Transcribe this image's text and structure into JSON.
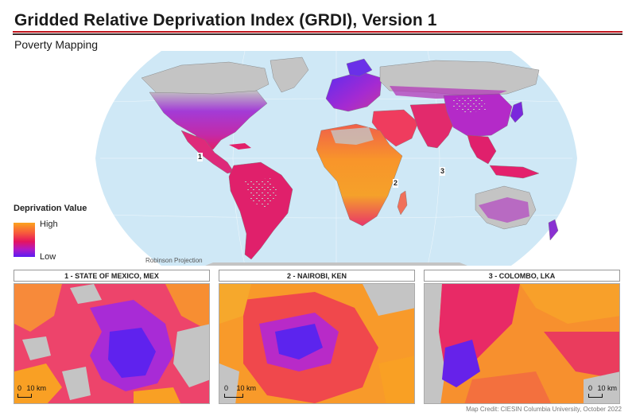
{
  "header": {
    "title": "Gridded Relative Deprivation Index (GRDI), Version 1",
    "subtitle": "Poverty Mapping"
  },
  "map": {
    "projection": "Robinson Projection",
    "callouts": [
      "1",
      "2",
      "3"
    ]
  },
  "legend": {
    "title": "Deprivation Value",
    "high": "High",
    "low": "Low",
    "colors": [
      "#fca41e",
      "#f75a3c",
      "#e5145f",
      "#b019c6",
      "#5a1df2"
    ]
  },
  "insets": [
    {
      "label": "1  -  STATE OF MEXICO, MEX",
      "scale_zero": "0",
      "scale_text": "10 km"
    },
    {
      "label": "2  - NAIROBI, KEN",
      "scale_zero": "0",
      "scale_text": "10 km"
    },
    {
      "label": "3  - COLOMBO, LKA",
      "scale_zero": "0",
      "scale_text": "10 km"
    }
  ],
  "credit": "Map Credit: CIESIN Columbia University, October 2022",
  "colors": {
    "ocean": "#cfe8f6",
    "land_nodata": "#c4c4c4",
    "title_rule": "#c0141b"
  }
}
